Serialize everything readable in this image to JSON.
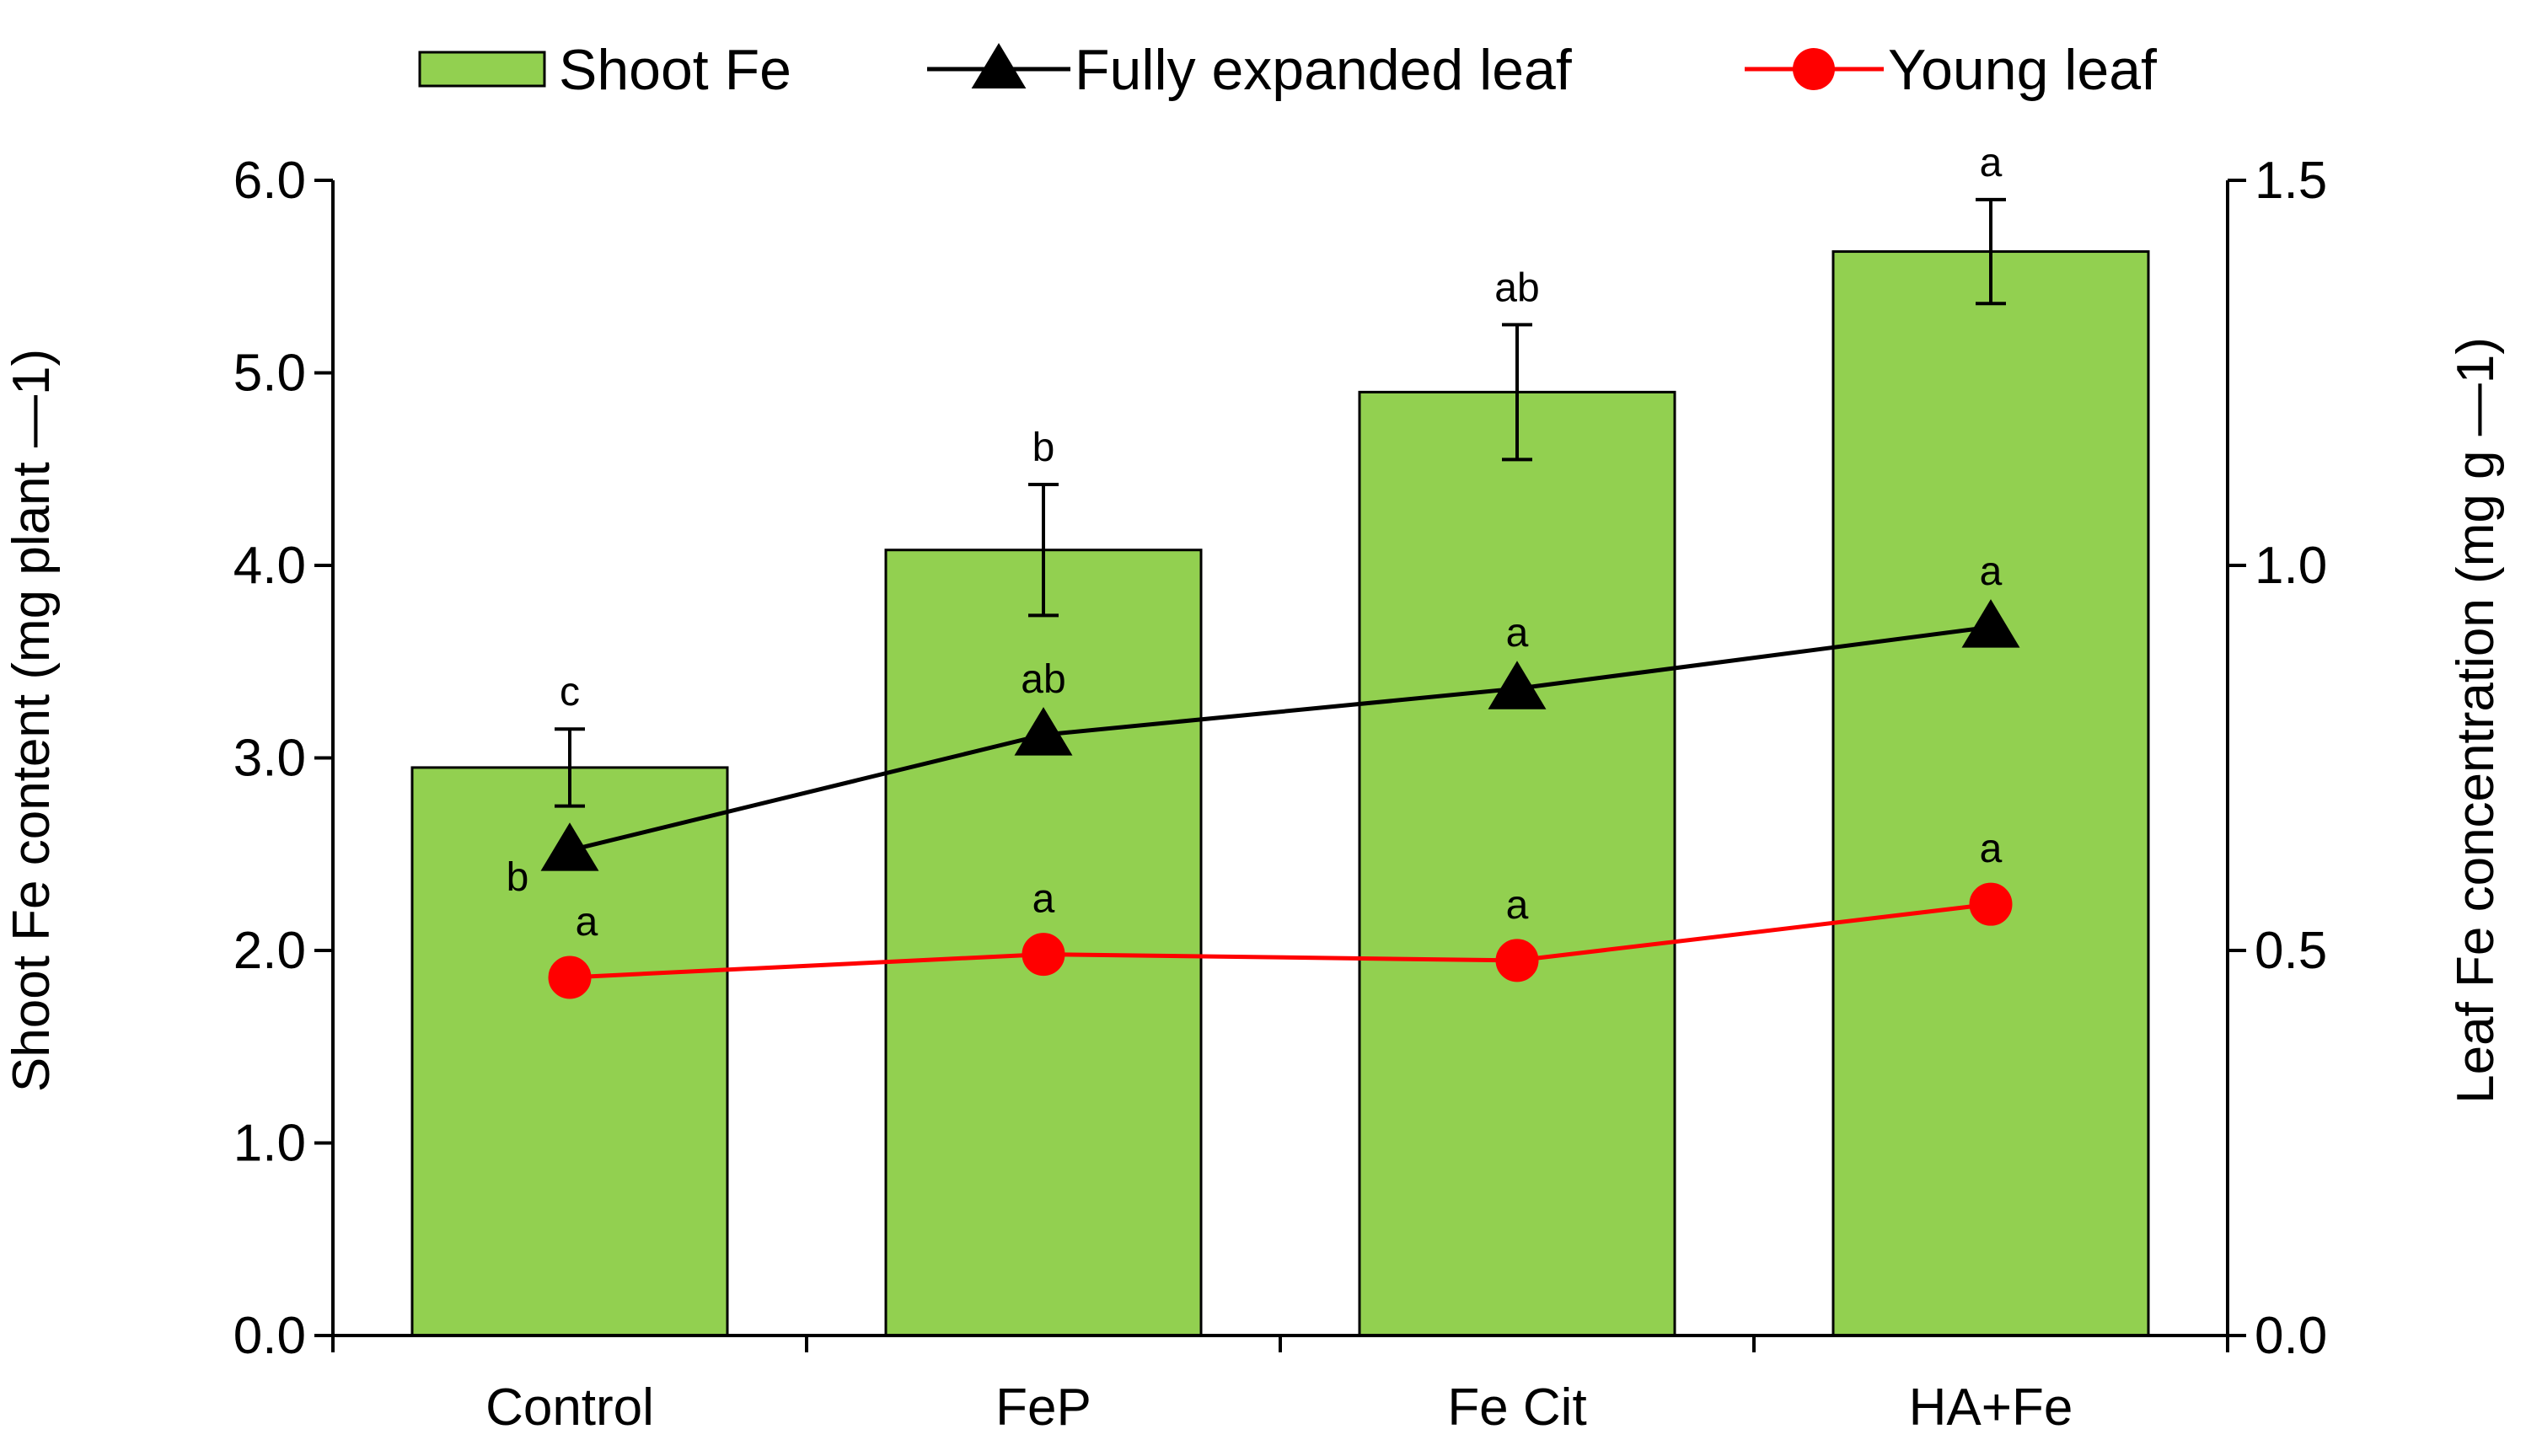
{
  "chart_data": {
    "type": "bar",
    "categories": [
      "Control",
      "FeP",
      "Fe Cit",
      "HA+Fe"
    ],
    "y_left": {
      "label": "Shoot Fe content (mg plant ⁻¹)",
      "label_display": "Shoot Fe content (mg plant —1)",
      "lim": [
        0,
        6
      ],
      "ticks": [
        "0.0",
        "1.0",
        "2.0",
        "3.0",
        "4.0",
        "5.0",
        "6.0"
      ]
    },
    "y_right": {
      "label": "Leaf Fe concentration (mg g ⁻¹)",
      "label_display": "Leaf Fe concentration (mg g —1)",
      "lim": [
        0,
        1.5
      ],
      "ticks": [
        "0.0",
        "0.5",
        "1.0",
        "1.5"
      ]
    },
    "series": [
      {
        "name": "Shoot Fe",
        "kind": "bar",
        "axis": "left",
        "color": "#92d050",
        "values": [
          2.95,
          4.08,
          4.9,
          5.63
        ],
        "errors": [
          0.2,
          0.34,
          0.35,
          0.27
        ],
        "letters": [
          "c",
          "b",
          "ab",
          "a"
        ]
      },
      {
        "name": "Fully expanded leaf",
        "kind": "line",
        "marker": "triangle",
        "axis": "right",
        "color": "#000000",
        "values": [
          0.63,
          0.78,
          0.84,
          0.92
        ],
        "letters": [
          "b",
          "ab",
          "a",
          "a"
        ]
      },
      {
        "name": "Young leaf",
        "kind": "line",
        "marker": "circle",
        "axis": "right",
        "color": "#ff0000",
        "values": [
          0.465,
          0.495,
          0.487,
          0.56
        ],
        "letters": [
          "a",
          "a",
          "a",
          "a"
        ]
      }
    ],
    "legend_position": "top"
  }
}
